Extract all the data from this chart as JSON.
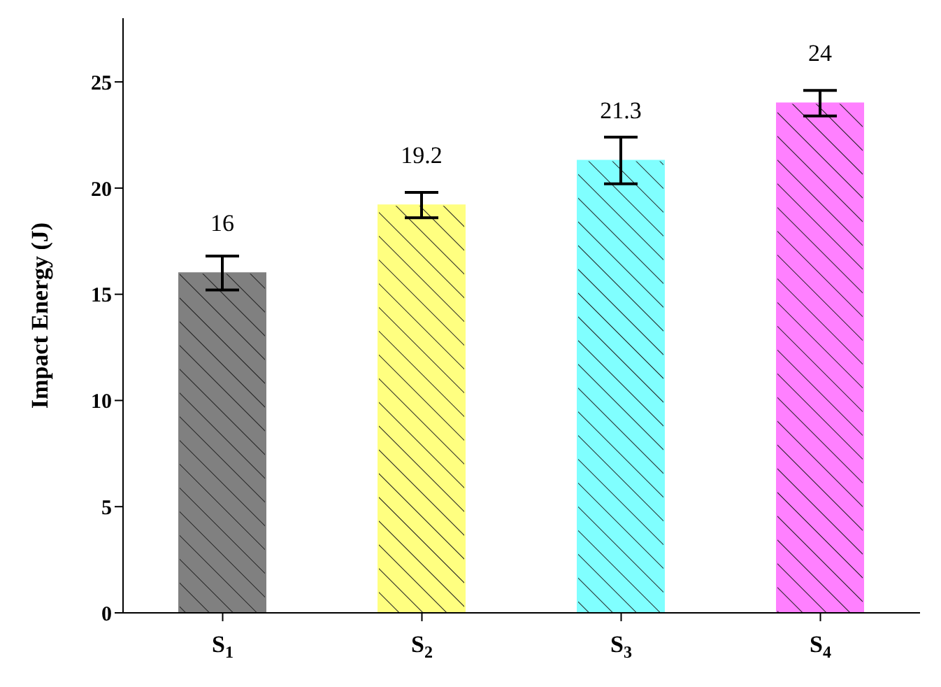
{
  "chart_data": {
    "type": "bar",
    "ylabel": "Impact Energy (J)",
    "categories": [
      "S$_{1}$",
      "S$_{2}$",
      "S$_{3}$",
      "S$_{4}$"
    ],
    "values": [
      16,
      19.2,
      21.3,
      24
    ],
    "errors": [
      0.8,
      0.6,
      1.1,
      0.6
    ],
    "colors": [
      "#808080",
      "#ffff80",
      "#80ffff",
      "#ff80ff"
    ],
    "ylim": [
      0,
      28
    ],
    "yticks": [
      0,
      5,
      10,
      15,
      20,
      25
    ],
    "data_labels": true,
    "grid": false,
    "legend": false
  }
}
